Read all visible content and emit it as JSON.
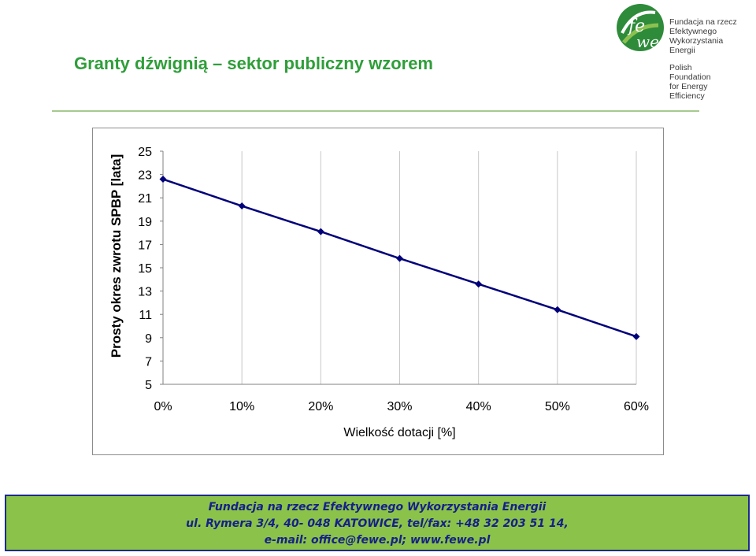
{
  "slide": {
    "title": "Granty dźwignią – sektor publiczny wzorem"
  },
  "logo": {
    "name_pl": [
      "Fundacja na rzecz",
      "Efektywnego",
      "Wykorzystania",
      "Energii"
    ],
    "name_en": [
      "Polish",
      "Foundation",
      "for Energy",
      "Efficiency"
    ],
    "colors": {
      "primary": "#2e8b3a",
      "light": "#8cc152"
    }
  },
  "chart_data": {
    "type": "line",
    "title": "",
    "xlabel": "Wielkość dotacji [%]",
    "ylabel": "Prosty okres zwrotu SPBP [lata]",
    "x": [
      0,
      10,
      20,
      30,
      40,
      50,
      60
    ],
    "x_tick_labels": [
      "0%",
      "10%",
      "20%",
      "30%",
      "40%",
      "50%",
      "60%"
    ],
    "y_tick_labels": [
      "25",
      "23",
      "21",
      "19",
      "17",
      "15",
      "13",
      "11",
      "9",
      "7",
      "5"
    ],
    "ylim": [
      5,
      25
    ],
    "series": [
      {
        "values": [
          22.6,
          20.3,
          18.1,
          15.8,
          13.6,
          11.4,
          9.1
        ],
        "color": "#00007a",
        "marker": "diamond"
      }
    ],
    "grid": true,
    "grid_color": "#c8c8c8"
  },
  "footer": {
    "line1": "Fundacja na rzecz Efektywnego Wykorzystania Energii",
    "line2": "ul. Rymera 3/4, 40- 048 KATOWICE, tel/fax: +48 32 203 51 14,",
    "line3": "e-mail: office@fewe.pl; www.fewe.pl"
  }
}
